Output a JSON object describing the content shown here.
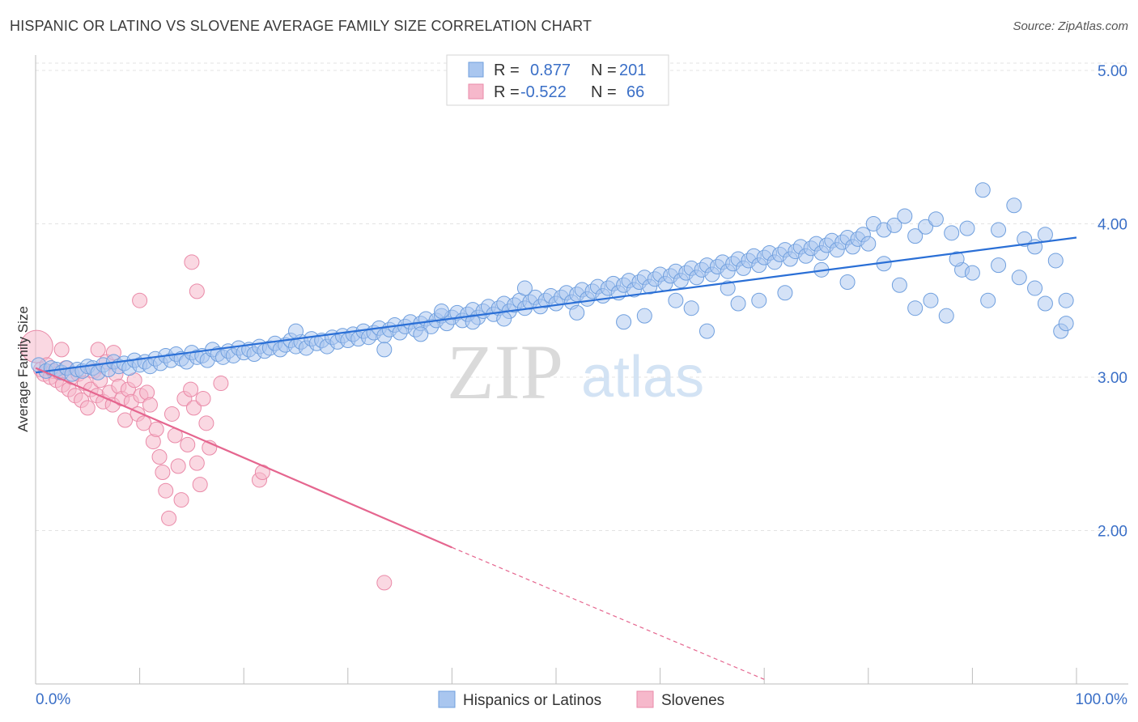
{
  "title": "HISPANIC OR LATINO VS SLOVENE AVERAGE FAMILY SIZE CORRELATION CHART",
  "source": "Source: ZipAtlas.com",
  "watermark": {
    "zip": "ZIP",
    "atlas": "atlas"
  },
  "legend": {
    "r_label": "R =",
    "n_label": "N =",
    "rows": [
      {
        "r": "0.877",
        "n": "201",
        "color": "#a9c6ef"
      },
      {
        "r": "-0.522",
        "n": "66",
        "color": "#f6b8cb"
      }
    ]
  },
  "bottom_legend": [
    "Hispanics or Latinos",
    "Slovenes"
  ],
  "colors": {
    "blue_fill": "#a9c6ef",
    "blue_stroke": "#6f9fde",
    "blue_line": "#2a6fd6",
    "pink_fill": "#f6b8cb",
    "pink_stroke": "#ea8aa8",
    "pink_line": "#e5668f",
    "tick_text": "#3a6fc7",
    "grid": "#e3e3e3"
  },
  "chart_data": {
    "type": "scatter",
    "title": "HISPANIC OR LATINO VS SLOVENE AVERAGE FAMILY SIZE CORRELATION CHART",
    "xlabel": "",
    "ylabel": "Average Family Size",
    "xlim": [
      0,
      100
    ],
    "ylim": [
      1.0,
      5.1
    ],
    "x_tick_labels": [
      "0.0%",
      "100.0%"
    ],
    "y_ticks": [
      2.0,
      3.0,
      4.0,
      5.0
    ],
    "y_tick_labels": [
      "2.00",
      "3.00",
      "4.00",
      "5.00"
    ],
    "grid": "horizontal dashed",
    "legend_position": "top-center",
    "series": [
      {
        "name": "Hispanics or Latinos",
        "r": 0.877,
        "n": 201,
        "trend": {
          "x": [
            0,
            100
          ],
          "y": [
            3.03,
            3.91
          ]
        },
        "points": [
          [
            0.3,
            3.08
          ],
          [
            1.0,
            3.04
          ],
          [
            1.5,
            3.06
          ],
          [
            2.0,
            3.05
          ],
          [
            2.5,
            3.03
          ],
          [
            3.0,
            3.06
          ],
          [
            3.5,
            3.02
          ],
          [
            4.0,
            3.05
          ],
          [
            4.5,
            3.04
          ],
          [
            5.0,
            3.07
          ],
          [
            5.5,
            3.06
          ],
          [
            6.0,
            3.03
          ],
          [
            6.5,
            3.08
          ],
          [
            7.0,
            3.05
          ],
          [
            7.5,
            3.1
          ],
          [
            8.0,
            3.07
          ],
          [
            8.5,
            3.09
          ],
          [
            9.0,
            3.06
          ],
          [
            9.5,
            3.11
          ],
          [
            10.0,
            3.08
          ],
          [
            10.5,
            3.1
          ],
          [
            11.0,
            3.07
          ],
          [
            11.5,
            3.12
          ],
          [
            12.0,
            3.09
          ],
          [
            12.5,
            3.14
          ],
          [
            13.0,
            3.11
          ],
          [
            13.5,
            3.15
          ],
          [
            14.0,
            3.12
          ],
          [
            14.5,
            3.1
          ],
          [
            15.0,
            3.16
          ],
          [
            15.5,
            3.13
          ],
          [
            16.0,
            3.14
          ],
          [
            16.5,
            3.11
          ],
          [
            17.0,
            3.18
          ],
          [
            17.5,
            3.15
          ],
          [
            18.0,
            3.13
          ],
          [
            18.5,
            3.17
          ],
          [
            19.0,
            3.14
          ],
          [
            19.5,
            3.19
          ],
          [
            20.0,
            3.16
          ],
          [
            20.5,
            3.18
          ],
          [
            21.0,
            3.15
          ],
          [
            21.5,
            3.2
          ],
          [
            22.0,
            3.17
          ],
          [
            22.5,
            3.19
          ],
          [
            23.0,
            3.22
          ],
          [
            23.5,
            3.18
          ],
          [
            24.0,
            3.21
          ],
          [
            24.5,
            3.24
          ],
          [
            25.0,
            3.2
          ],
          [
            25.5,
            3.23
          ],
          [
            26.0,
            3.19
          ],
          [
            26.5,
            3.25
          ],
          [
            27.0,
            3.22
          ],
          [
            27.5,
            3.24
          ],
          [
            28.0,
            3.2
          ],
          [
            28.5,
            3.26
          ],
          [
            29.0,
            3.23
          ],
          [
            29.5,
            3.27
          ],
          [
            30.0,
            3.24
          ],
          [
            30.5,
            3.28
          ],
          [
            31.0,
            3.25
          ],
          [
            31.5,
            3.3
          ],
          [
            32.0,
            3.26
          ],
          [
            32.5,
            3.29
          ],
          [
            33.0,
            3.32
          ],
          [
            33.5,
            3.27
          ],
          [
            34.0,
            3.31
          ],
          [
            34.5,
            3.34
          ],
          [
            35.0,
            3.29
          ],
          [
            35.5,
            3.33
          ],
          [
            36.0,
            3.36
          ],
          [
            36.5,
            3.31
          ],
          [
            37.0,
            3.35
          ],
          [
            37.5,
            3.38
          ],
          [
            38.0,
            3.33
          ],
          [
            38.5,
            3.37
          ],
          [
            39.0,
            3.4
          ],
          [
            39.5,
            3.35
          ],
          [
            40.0,
            3.39
          ],
          [
            40.5,
            3.42
          ],
          [
            41.0,
            3.37
          ],
          [
            41.5,
            3.41
          ],
          [
            42.0,
            3.44
          ],
          [
            42.5,
            3.39
          ],
          [
            43.0,
            3.43
          ],
          [
            43.5,
            3.46
          ],
          [
            44.0,
            3.41
          ],
          [
            44.5,
            3.45
          ],
          [
            45.0,
            3.48
          ],
          [
            45.5,
            3.43
          ],
          [
            46.0,
            3.47
          ],
          [
            46.5,
            3.5
          ],
          [
            47.0,
            3.45
          ],
          [
            47.5,
            3.49
          ],
          [
            48.0,
            3.52
          ],
          [
            48.5,
            3.46
          ],
          [
            49.0,
            3.5
          ],
          [
            49.5,
            3.53
          ],
          [
            50.0,
            3.48
          ],
          [
            50.5,
            3.52
          ],
          [
            51.0,
            3.55
          ],
          [
            51.5,
            3.49
          ],
          [
            52.0,
            3.54
          ],
          [
            52.5,
            3.57
          ],
          [
            53.0,
            3.51
          ],
          [
            53.5,
            3.56
          ],
          [
            54.0,
            3.59
          ],
          [
            54.5,
            3.53
          ],
          [
            55.0,
            3.58
          ],
          [
            55.5,
            3.61
          ],
          [
            56.0,
            3.55
          ],
          [
            56.5,
            3.6
          ],
          [
            57.0,
            3.63
          ],
          [
            57.5,
            3.57
          ],
          [
            58.0,
            3.62
          ],
          [
            58.5,
            3.65
          ],
          [
            59.0,
            3.59
          ],
          [
            59.5,
            3.64
          ],
          [
            60.0,
            3.67
          ],
          [
            60.5,
            3.61
          ],
          [
            61.0,
            3.66
          ],
          [
            61.5,
            3.69
          ],
          [
            62.0,
            3.63
          ],
          [
            62.5,
            3.68
          ],
          [
            63.0,
            3.71
          ],
          [
            63.5,
            3.65
          ],
          [
            64.0,
            3.7
          ],
          [
            64.5,
            3.73
          ],
          [
            65.0,
            3.67
          ],
          [
            65.5,
            3.72
          ],
          [
            66.0,
            3.75
          ],
          [
            66.5,
            3.69
          ],
          [
            67.0,
            3.74
          ],
          [
            67.5,
            3.77
          ],
          [
            68.0,
            3.71
          ],
          [
            68.5,
            3.76
          ],
          [
            69.0,
            3.79
          ],
          [
            69.5,
            3.73
          ],
          [
            70.0,
            3.78
          ],
          [
            70.5,
            3.81
          ],
          [
            71.0,
            3.75
          ],
          [
            71.5,
            3.8
          ],
          [
            72.0,
            3.83
          ],
          [
            72.5,
            3.77
          ],
          [
            73.0,
            3.82
          ],
          [
            73.5,
            3.85
          ],
          [
            74.0,
            3.79
          ],
          [
            74.5,
            3.84
          ],
          [
            75.0,
            3.87
          ],
          [
            75.5,
            3.81
          ],
          [
            76.0,
            3.86
          ],
          [
            76.5,
            3.89
          ],
          [
            77.0,
            3.83
          ],
          [
            77.5,
            3.88
          ],
          [
            78.0,
            3.91
          ],
          [
            78.5,
            3.85
          ],
          [
            79.0,
            3.9
          ],
          [
            79.5,
            3.93
          ],
          [
            80.0,
            3.87
          ],
          [
            80.5,
            4.0
          ],
          [
            81.5,
            3.96
          ],
          [
            82.5,
            3.99
          ],
          [
            83.5,
            4.05
          ],
          [
            84.5,
            3.92
          ],
          [
            85.5,
            3.98
          ],
          [
            86.5,
            4.03
          ],
          [
            88.0,
            3.94
          ],
          [
            89.5,
            3.97
          ],
          [
            91.0,
            4.22
          ],
          [
            92.5,
            3.96
          ],
          [
            94.0,
            4.12
          ],
          [
            95.0,
            3.9
          ],
          [
            96.0,
            3.85
          ],
          [
            97.0,
            3.93
          ],
          [
            98.0,
            3.76
          ],
          [
            99.0,
            3.5
          ],
          [
            25.0,
            3.3
          ],
          [
            37.0,
            3.28
          ],
          [
            45.0,
            3.38
          ],
          [
            47.0,
            3.58
          ],
          [
            52.0,
            3.42
          ],
          [
            56.5,
            3.36
          ],
          [
            61.5,
            3.5
          ],
          [
            63.0,
            3.45
          ],
          [
            64.5,
            3.3
          ],
          [
            66.5,
            3.58
          ],
          [
            69.5,
            3.5
          ],
          [
            72.0,
            3.55
          ],
          [
            75.5,
            3.7
          ],
          [
            78.0,
            3.62
          ],
          [
            81.5,
            3.74
          ],
          [
            83.0,
            3.6
          ],
          [
            84.5,
            3.45
          ],
          [
            86.0,
            3.5
          ],
          [
            87.5,
            3.4
          ],
          [
            89.0,
            3.7
          ],
          [
            90.0,
            3.68
          ],
          [
            91.5,
            3.5
          ],
          [
            92.5,
            3.73
          ],
          [
            94.5,
            3.65
          ],
          [
            96.0,
            3.58
          ],
          [
            98.5,
            3.3
          ],
          [
            97.0,
            3.48
          ],
          [
            99.0,
            3.35
          ],
          [
            33.5,
            3.18
          ],
          [
            39.0,
            3.43
          ],
          [
            42.0,
            3.36
          ],
          [
            58.5,
            3.4
          ],
          [
            67.5,
            3.48
          ],
          [
            88.5,
            3.77
          ]
        ]
      },
      {
        "name": "Slovenes",
        "r": -0.522,
        "n": 66,
        "trend": {
          "x": [
            0,
            40
          ],
          "y": [
            3.06,
            1.89
          ]
        },
        "trend_dashed": {
          "x": [
            40,
            70
          ],
          "y": [
            1.89,
            1.03
          ]
        },
        "points": [
          [
            0.1,
            3.2
          ],
          [
            0.5,
            3.05
          ],
          [
            0.8,
            3.02
          ],
          [
            1.1,
            3.08
          ],
          [
            1.4,
            3.0
          ],
          [
            1.7,
            3.04
          ],
          [
            2.0,
            2.98
          ],
          [
            2.3,
            3.03
          ],
          [
            2.6,
            2.95
          ],
          [
            2.9,
            3.06
          ],
          [
            3.2,
            2.92
          ],
          [
            3.5,
            3.0
          ],
          [
            3.8,
            2.88
          ],
          [
            4.1,
            3.02
          ],
          [
            4.4,
            2.85
          ],
          [
            4.7,
            2.96
          ],
          [
            5.0,
            2.8
          ],
          [
            5.3,
            2.92
          ],
          [
            5.6,
            3.04
          ],
          [
            5.9,
            2.88
          ],
          [
            6.2,
            2.98
          ],
          [
            6.5,
            2.84
          ],
          [
            6.8,
            3.1
          ],
          [
            7.1,
            2.9
          ],
          [
            7.4,
            2.82
          ],
          [
            7.7,
            3.02
          ],
          [
            8.0,
            2.94
          ],
          [
            8.3,
            2.86
          ],
          [
            8.6,
            2.72
          ],
          [
            8.9,
            2.92
          ],
          [
            9.2,
            2.84
          ],
          [
            9.5,
            2.98
          ],
          [
            9.8,
            2.76
          ],
          [
            10.1,
            2.88
          ],
          [
            10.4,
            2.7
          ],
          [
            10.7,
            2.9
          ],
          [
            11.0,
            2.82
          ],
          [
            11.3,
            2.58
          ],
          [
            11.6,
            2.66
          ],
          [
            11.9,
            2.48
          ],
          [
            12.2,
            2.38
          ],
          [
            12.5,
            2.26
          ],
          [
            12.8,
            2.08
          ],
          [
            13.1,
            2.76
          ],
          [
            13.4,
            2.62
          ],
          [
            13.7,
            2.42
          ],
          [
            14.0,
            2.2
          ],
          [
            14.3,
            2.86
          ],
          [
            14.6,
            2.56
          ],
          [
            14.9,
            2.92
          ],
          [
            15.2,
            2.8
          ],
          [
            15.5,
            2.44
          ],
          [
            15.8,
            2.3
          ],
          [
            16.1,
            2.86
          ],
          [
            16.4,
            2.7
          ],
          [
            16.7,
            2.54
          ],
          [
            6.0,
            3.18
          ],
          [
            2.5,
            3.18
          ],
          [
            7.5,
            3.16
          ],
          [
            10.0,
            3.5
          ],
          [
            15.0,
            3.75
          ],
          [
            15.5,
            3.56
          ],
          [
            17.8,
            2.96
          ],
          [
            21.5,
            2.33
          ],
          [
            21.8,
            2.38
          ],
          [
            33.5,
            1.66
          ]
        ]
      }
    ]
  }
}
